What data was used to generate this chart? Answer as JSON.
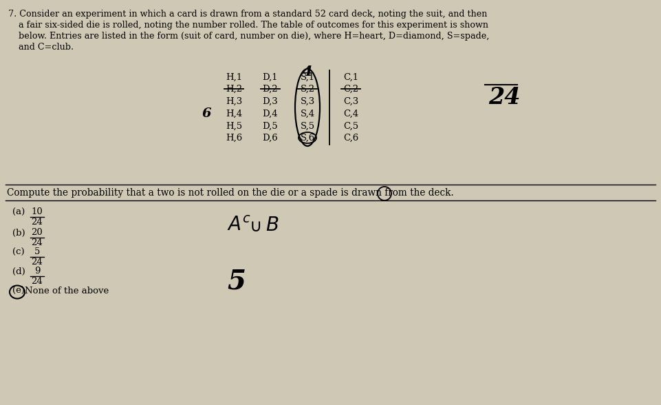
{
  "bg_color": "#cfc8b4",
  "title_lines": [
    "7. Consider an experiment in which a card is drawn from a standard 52 card deck, noting the suit, and then",
    "a fair six-sided die is rolled, noting the number rolled. The table of outcomes for this experiment is shown",
    "below. Entries are listed in the form (suit of card, number on die), where H=heart, D=diamond, S=spade,",
    "and C=club."
  ],
  "col1": [
    "H,1",
    "H,2",
    "H,3",
    "H,4",
    "H,5",
    "H,6"
  ],
  "col2": [
    "D,1",
    "D,2",
    "D,3",
    "D,4",
    "D,5",
    "D,6"
  ],
  "col3": [
    "S,1",
    "S,2",
    "S,3",
    "S,4",
    "S,5",
    "S,6"
  ],
  "col4": [
    "C,1",
    "C,2",
    "C,3",
    "C,4",
    "C,5",
    "C,6"
  ],
  "question": "Compute the probability that a two is not rolled on the die or a spade is drawn from the deck.",
  "choice_labels": [
    "(a)",
    "(b)",
    "(c)",
    "(d)",
    "(e)"
  ],
  "choice_nums": [
    "10",
    "20",
    "5",
    "9",
    ""
  ],
  "choice_dens": [
    "24",
    "24",
    "24",
    "24",
    ""
  ],
  "choice_last": "None of the above",
  "annotation_4": "4",
  "annotation_6": "6",
  "annotation_24": "24"
}
